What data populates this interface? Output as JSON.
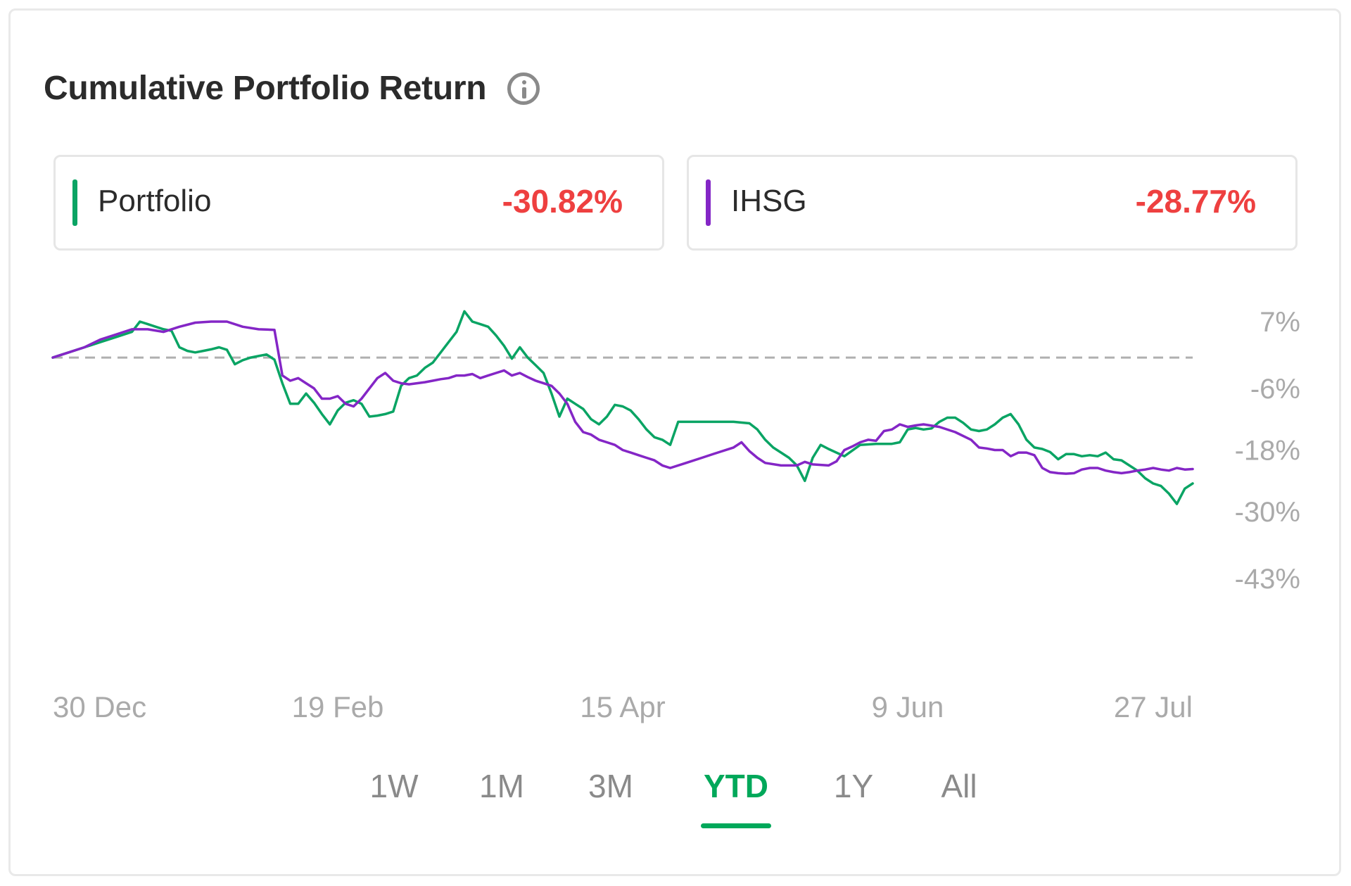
{
  "header": {
    "title": "Cumulative Portfolio Return",
    "info_icon": "info-icon"
  },
  "legend": [
    {
      "name": "Portfolio",
      "value": "-30.82%",
      "color": "#0aa464"
    },
    {
      "name": "IHSG",
      "value": "-28.77%",
      "color": "#8426c6"
    }
  ],
  "period_tabs": {
    "items": [
      "1W",
      "1M",
      "3M",
      "YTD",
      "1Y",
      "All"
    ],
    "active": "YTD",
    "active_color": "#00a85a"
  },
  "chart_data": {
    "type": "line",
    "ytick_labels": [
      "7%",
      "-6%",
      "-18%",
      "-30%",
      "-43%"
    ],
    "ytick_values": [
      7,
      -6,
      -18,
      -30,
      -43
    ],
    "xtick_labels": [
      "30 Dec",
      "19 Feb",
      "15 Apr",
      "9 Jun",
      "27 Jul"
    ],
    "xtick_index": [
      0,
      36,
      72,
      108,
      144
    ],
    "baseline": 0,
    "grid": false,
    "series": [
      {
        "name": "Portfolio",
        "color": "#0aa464",
        "points": [
          [
            0,
            0
          ],
          [
            2,
            1
          ],
          [
            4,
            2
          ],
          [
            6,
            3
          ],
          [
            8,
            4
          ],
          [
            10,
            5
          ],
          [
            11,
            7
          ],
          [
            12,
            6.5
          ],
          [
            13,
            6
          ],
          [
            14,
            5.5
          ],
          [
            15,
            5.2
          ],
          [
            16,
            2
          ],
          [
            17,
            1.3
          ],
          [
            18,
            1
          ],
          [
            19,
            1.3
          ],
          [
            20,
            1.6
          ],
          [
            21,
            2
          ],
          [
            22,
            1.5
          ],
          [
            23,
            -1.3
          ],
          [
            24,
            -0.5
          ],
          [
            25,
            0
          ],
          [
            26,
            0.3
          ],
          [
            27,
            0.6
          ],
          [
            28,
            -0.4
          ],
          [
            29,
            -5
          ],
          [
            30,
            -9
          ],
          [
            31,
            -9
          ],
          [
            32,
            -7
          ],
          [
            33,
            -8.8
          ],
          [
            34,
            -11
          ],
          [
            35,
            -13
          ],
          [
            36,
            -10.3
          ],
          [
            37,
            -8.8
          ],
          [
            38,
            -8.3
          ],
          [
            39,
            -9
          ],
          [
            40,
            -11.5
          ],
          [
            41,
            -11.3
          ],
          [
            42,
            -11
          ],
          [
            43,
            -10.5
          ],
          [
            44,
            -5.5
          ],
          [
            45,
            -4
          ],
          [
            46,
            -3.5
          ],
          [
            47,
            -2
          ],
          [
            48,
            -1
          ],
          [
            49,
            1
          ],
          [
            50,
            3
          ],
          [
            51,
            5
          ],
          [
            52,
            9
          ],
          [
            53,
            7
          ],
          [
            54,
            6.5
          ],
          [
            55,
            6
          ],
          [
            56,
            4.3
          ],
          [
            57,
            2.3
          ],
          [
            58,
            -0.2
          ],
          [
            59,
            2
          ],
          [
            60,
            0
          ],
          [
            61,
            -1.5
          ],
          [
            62,
            -3
          ],
          [
            63,
            -7
          ],
          [
            64,
            -11.5
          ],
          [
            65,
            -8
          ],
          [
            66,
            -9
          ],
          [
            67,
            -10
          ],
          [
            68,
            -12
          ],
          [
            69,
            -13
          ],
          [
            70,
            -11.5
          ],
          [
            71,
            -9.2
          ],
          [
            72,
            -9.5
          ],
          [
            73,
            -10.3
          ],
          [
            74,
            -12
          ],
          [
            75,
            -14
          ],
          [
            76,
            -15.5
          ],
          [
            77,
            -16
          ],
          [
            78,
            -17
          ],
          [
            79,
            -12.5
          ],
          [
            80,
            -12.5
          ],
          [
            83,
            -12.5
          ],
          [
            86,
            -12.5
          ],
          [
            88,
            -12.8
          ],
          [
            89,
            -14
          ],
          [
            90,
            -16
          ],
          [
            91,
            -17.5
          ],
          [
            92,
            -18.5
          ],
          [
            93,
            -19.5
          ],
          [
            94,
            -21
          ],
          [
            95,
            -24
          ],
          [
            96,
            -19.5
          ],
          [
            97,
            -17
          ],
          [
            98,
            -17.8
          ],
          [
            100,
            -19.2
          ],
          [
            102,
            -17
          ],
          [
            104,
            -16.8
          ],
          [
            106,
            -16.8
          ],
          [
            107,
            -16.5
          ],
          [
            108,
            -14
          ],
          [
            109,
            -13.7
          ],
          [
            110,
            -14
          ],
          [
            111,
            -13.8
          ],
          [
            112,
            -12.5
          ],
          [
            113,
            -11.7
          ],
          [
            114,
            -11.7
          ],
          [
            115,
            -12.7
          ],
          [
            116,
            -14
          ],
          [
            117,
            -14.3
          ],
          [
            118,
            -14
          ],
          [
            119,
            -13
          ],
          [
            120,
            -11.7
          ],
          [
            121,
            -11
          ],
          [
            122,
            -13
          ],
          [
            123,
            -16
          ],
          [
            124,
            -17.5
          ],
          [
            125,
            -17.8
          ],
          [
            126,
            -18.4
          ],
          [
            127,
            -19.8
          ],
          [
            128,
            -18.8
          ],
          [
            129,
            -18.8
          ],
          [
            130,
            -19.2
          ],
          [
            131,
            -19
          ],
          [
            132,
            -19.2
          ],
          [
            133,
            -18.5
          ],
          [
            134,
            -19.8
          ],
          [
            135,
            -20
          ],
          [
            136,
            -21
          ],
          [
            137,
            -22
          ],
          [
            138,
            -23.5
          ],
          [
            139,
            -24.5
          ],
          [
            140,
            -25
          ],
          [
            141,
            -26.5
          ],
          [
            142,
            -28.5
          ],
          [
            143,
            -25.5
          ],
          [
            144,
            -24.5
          ]
        ]
      },
      {
        "name": "IHSG",
        "color": "#8426c6",
        "points": [
          [
            0,
            0
          ],
          [
            2,
            1
          ],
          [
            4,
            2
          ],
          [
            6,
            3.5
          ],
          [
            8,
            4.5
          ],
          [
            10,
            5.5
          ],
          [
            12,
            5.5
          ],
          [
            14,
            5
          ],
          [
            16,
            6
          ],
          [
            18,
            6.8
          ],
          [
            20,
            7
          ],
          [
            22,
            7
          ],
          [
            24,
            6
          ],
          [
            26,
            5.5
          ],
          [
            28,
            5.4
          ],
          [
            29,
            -3.5
          ],
          [
            30,
            -4.5
          ],
          [
            31,
            -4
          ],
          [
            32,
            -5
          ],
          [
            33,
            -6
          ],
          [
            34,
            -8
          ],
          [
            35,
            -8
          ],
          [
            36,
            -7.5
          ],
          [
            37,
            -9
          ],
          [
            38,
            -9.5
          ],
          [
            39,
            -8
          ],
          [
            40,
            -6
          ],
          [
            41,
            -4
          ],
          [
            42,
            -3
          ],
          [
            43,
            -4.5
          ],
          [
            44,
            -5
          ],
          [
            45,
            -5.2
          ],
          [
            46,
            -5
          ],
          [
            47,
            -4.8
          ],
          [
            48,
            -4.5
          ],
          [
            49,
            -4.2
          ],
          [
            50,
            -4
          ],
          [
            51,
            -3.5
          ],
          [
            52,
            -3.5
          ],
          [
            53,
            -3.2
          ],
          [
            54,
            -4
          ],
          [
            55,
            -3.5
          ],
          [
            56,
            -3
          ],
          [
            57,
            -2.5
          ],
          [
            58,
            -3.5
          ],
          [
            59,
            -3
          ],
          [
            60,
            -3.8
          ],
          [
            61,
            -4.5
          ],
          [
            62,
            -5
          ],
          [
            63,
            -5.5
          ],
          [
            64,
            -7
          ],
          [
            65,
            -9
          ],
          [
            66,
            -12.5
          ],
          [
            67,
            -14.5
          ],
          [
            68,
            -15
          ],
          [
            69,
            -16
          ],
          [
            70,
            -16.5
          ],
          [
            71,
            -17
          ],
          [
            72,
            -18
          ],
          [
            73,
            -18.5
          ],
          [
            74,
            -19
          ],
          [
            75,
            -19.5
          ],
          [
            76,
            -20
          ],
          [
            77,
            -21
          ],
          [
            78,
            -21.5
          ],
          [
            80,
            -20.5
          ],
          [
            82,
            -19.5
          ],
          [
            84,
            -18.5
          ],
          [
            86,
            -17.5
          ],
          [
            87,
            -16.5
          ],
          [
            88,
            -18.2
          ],
          [
            89,
            -19.5
          ],
          [
            90,
            -20.5
          ],
          [
            92,
            -21
          ],
          [
            94,
            -21
          ],
          [
            95,
            -20.3
          ],
          [
            96,
            -20.8
          ],
          [
            98,
            -21
          ],
          [
            99,
            -20.2
          ],
          [
            100,
            -18
          ],
          [
            101,
            -17.3
          ],
          [
            102,
            -16.5
          ],
          [
            103,
            -16
          ],
          [
            104,
            -16.2
          ],
          [
            105,
            -14.3
          ],
          [
            106,
            -14
          ],
          [
            107,
            -13
          ],
          [
            108,
            -13.5
          ],
          [
            109,
            -13.2
          ],
          [
            110,
            -13
          ],
          [
            112,
            -13.5
          ],
          [
            114,
            -14.5
          ],
          [
            116,
            -16
          ],
          [
            117,
            -17.5
          ],
          [
            118,
            -17.7
          ],
          [
            119,
            -18
          ],
          [
            120,
            -18
          ],
          [
            121,
            -19.2
          ],
          [
            122,
            -18.5
          ],
          [
            123,
            -18.5
          ],
          [
            124,
            -19
          ],
          [
            125,
            -21.5
          ],
          [
            126,
            -22.3
          ],
          [
            127,
            -22.5
          ],
          [
            128,
            -22.6
          ],
          [
            129,
            -22.5
          ],
          [
            130,
            -21.8
          ],
          [
            131,
            -21.5
          ],
          [
            132,
            -21.5
          ],
          [
            133,
            -22
          ],
          [
            134,
            -22.3
          ],
          [
            135,
            -22.5
          ],
          [
            136,
            -22.3
          ],
          [
            137,
            -22
          ],
          [
            138,
            -21.8
          ],
          [
            139,
            -21.5
          ],
          [
            140,
            -21.8
          ],
          [
            141,
            -22
          ],
          [
            142,
            -21.5
          ],
          [
            143,
            -21.8
          ],
          [
            144,
            -21.7
          ]
        ]
      }
    ]
  }
}
